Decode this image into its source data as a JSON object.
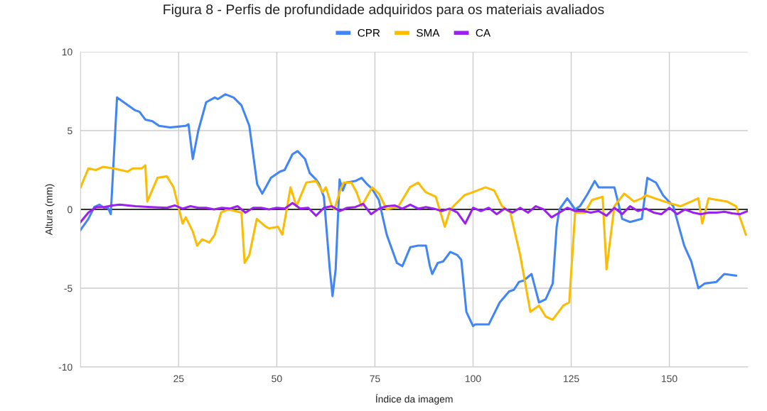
{
  "chart_data": {
    "type": "line",
    "title": "Figura 8 - Perfis de profundidade adquiridos para os materiais avaliados",
    "xlabel": "Índice da imagem",
    "ylabel": "Altura (mm)",
    "xlim": [
      0,
      170
    ],
    "xticks": [
      25,
      50,
      75,
      100,
      125,
      150
    ],
    "ylim": [
      -10,
      10
    ],
    "yticks": [
      -10,
      -5,
      0,
      5,
      10
    ],
    "grid": true,
    "legend": "top",
    "marker": "none",
    "line_style": "solid",
    "ref_lines": [
      {
        "axis": "y",
        "value": 0,
        "color": "#333333"
      }
    ],
    "series": [
      {
        "name": "CPR",
        "color": "#4285f4",
        "x": [
          0,
          2,
          3.5,
          4.8,
          6,
          7,
          7.7,
          9.3,
          11,
          13.8,
          15,
          16.5,
          18.3,
          20,
          22.8,
          26.8,
          27.5,
          28.6,
          30,
          32,
          34.2,
          35,
          36.9,
          39,
          41,
          43,
          45,
          46.3,
          48.5,
          50.8,
          52,
          54,
          55.3,
          57.2,
          58.4,
          60,
          60.8,
          62,
          63.5,
          64.2,
          65,
          66,
          66.8,
          67.6,
          70,
          71.6,
          73,
          74.3,
          76,
          78,
          80.6,
          82,
          84,
          86,
          88,
          89,
          89.6,
          91,
          92.4,
          94.2,
          96,
          97,
          98.3,
          100,
          100.5,
          104,
          106.8,
          109.2,
          110.4,
          111.7,
          113,
          114.9,
          116.8,
          118.5,
          120.3,
          121.3,
          122,
          124,
          126,
          127.2,
          129,
          131,
          132,
          136,
          138,
          140,
          143,
          144.4,
          146.6,
          148.4,
          151,
          153.8,
          155.6,
          157.4,
          159,
          162,
          164,
          167
        ],
        "values": [
          -1.3,
          -0.6,
          0.15,
          0.3,
          0.1,
          0.1,
          -0.3,
          7.1,
          6.8,
          6.3,
          6.2,
          5.7,
          5.6,
          5.3,
          5.2,
          5.3,
          5.4,
          3.2,
          5.0,
          6.8,
          7.1,
          7.0,
          7.3,
          7.1,
          6.6,
          5.3,
          1.6,
          1.0,
          2.0,
          2.4,
          2.5,
          3.5,
          3.7,
          3.2,
          2.3,
          1.9,
          1.6,
          0.8,
          -3.8,
          -5.5,
          -3.8,
          1.9,
          1.2,
          1.7,
          1.8,
          2.0,
          1.6,
          1.3,
          0.6,
          -1.6,
          -3.4,
          -3.6,
          -2.4,
          -2.3,
          -2.3,
          -3.6,
          -4.1,
          -3.4,
          -3.3,
          -2.7,
          -2.9,
          -3.2,
          -6.5,
          -7.4,
          -7.3,
          -7.3,
          -5.9,
          -5.2,
          -5.1,
          -4.6,
          -4.5,
          -4.1,
          -5.9,
          -5.7,
          -4.7,
          -1.1,
          0,
          0.7,
          0,
          0.2,
          0.9,
          1.8,
          1.4,
          1.4,
          -0.6,
          -0.8,
          -0.6,
          2.0,
          1.7,
          0.9,
          0.2,
          -2.3,
          -3.3,
          -5.0,
          -4.7,
          -4.6,
          -4.1,
          -4.2
        ]
      },
      {
        "name": "SMA",
        "color": "#fbbc04",
        "x": [
          0,
          2,
          3.9,
          5.7,
          8.4,
          12,
          13.3,
          15.6,
          16.5,
          17,
          17.7,
          19.6,
          22,
          23.7,
          26,
          26.8,
          28.6,
          29.7,
          31,
          32.8,
          34.2,
          35.8,
          37.6,
          41,
          41.8,
          43,
          44.9,
          47.2,
          48,
          50.3,
          51.4,
          53.5,
          55,
          57.5,
          60,
          61.7,
          62.5,
          64,
          64.7,
          66,
          67,
          69,
          70.3,
          71.6,
          74.3,
          76,
          78,
          81,
          83.9,
          86,
          87.9,
          90.5,
          92.8,
          94.2,
          97.8,
          100,
          103.2,
          105.4,
          107.4,
          109.5,
          112,
          114.6,
          116.8,
          118.5,
          120.3,
          123,
          124.5,
          126,
          128.5,
          130.3,
          133,
          134,
          136,
          138.5,
          141,
          143,
          144,
          147.5,
          150,
          152.8,
          155.6,
          157.4,
          158.4,
          160,
          162.3,
          164.7,
          167,
          169.5
        ],
        "values": [
          1.4,
          2.6,
          2.5,
          2.7,
          2.6,
          2.4,
          2.6,
          2.6,
          2.8,
          0.5,
          0.9,
          2.0,
          2.1,
          1.4,
          -0.9,
          -0.5,
          -1.4,
          -2.3,
          -1.9,
          -2.1,
          -1.6,
          -0.2,
          0,
          -0.2,
          -3.4,
          -2.9,
          -0.6,
          -1.1,
          -1.2,
          -1.1,
          -1.6,
          1.4,
          0.2,
          1.7,
          1.8,
          1.1,
          1.4,
          0.2,
          0,
          1.1,
          1.7,
          1.7,
          1.1,
          0.2,
          1.4,
          1.0,
          0,
          0.2,
          1.4,
          1.7,
          1.1,
          0.8,
          -1.1,
          0,
          0.9,
          1.1,
          1.4,
          1.2,
          0.2,
          -0.2,
          -2.9,
          -6.5,
          -6.1,
          -6.8,
          -7.0,
          -6.1,
          -5.9,
          -0.2,
          -0.2,
          0.6,
          0.8,
          -3.8,
          0.2,
          1.0,
          0.5,
          0.7,
          0.9,
          0.6,
          0.4,
          0.2,
          0.5,
          0.7,
          -0.9,
          0.7,
          0.6,
          0.5,
          0.2,
          -1.6
        ]
      },
      {
        "name": "CA",
        "color": "#9b20f0",
        "x": [
          0,
          2,
          4,
          6,
          8,
          10,
          14,
          18,
          22,
          24,
          26,
          28,
          30,
          32,
          34,
          36,
          38,
          40,
          42,
          44,
          46,
          48,
          50,
          52,
          54,
          56,
          58,
          60,
          62,
          64,
          66,
          68,
          70,
          72,
          74,
          76,
          78,
          80,
          82,
          84,
          86,
          88,
          90,
          92,
          94,
          96,
          98,
          100,
          102,
          104,
          106,
          108,
          110,
          112,
          114,
          116,
          118,
          120,
          122,
          124,
          126,
          128,
          130,
          132,
          134,
          136,
          138,
          140,
          142,
          144,
          146,
          148,
          150,
          152,
          154,
          156,
          158,
          160,
          162,
          164,
          166,
          168,
          170
        ],
        "values": [
          -0.8,
          -0.2,
          0.15,
          0.15,
          0.25,
          0.3,
          0.2,
          0.15,
          0.1,
          0.25,
          0.05,
          0.2,
          0.1,
          0.1,
          0,
          0.1,
          0.05,
          0.2,
          -0.2,
          0.1,
          0.1,
          0,
          0.1,
          0.05,
          0.4,
          0.05,
          0.1,
          -0.4,
          0.1,
          0.2,
          -0.1,
          0.1,
          0.15,
          0.35,
          -0.3,
          0.05,
          0.2,
          0.25,
          0.05,
          0.3,
          0.05,
          0.15,
          0.05,
          -0.1,
          0.05,
          -0.2,
          -0.9,
          0.1,
          -0.1,
          0.1,
          -0.3,
          0.05,
          -0.2,
          0.1,
          -0.2,
          0.2,
          0,
          -0.5,
          -0.2,
          0.1,
          -0.1,
          -0.1,
          -0.2,
          -0.1,
          -0.4,
          0.1,
          -0.3,
          0.2,
          -0.1,
          0.05,
          -0.2,
          -0.3,
          0.1,
          -0.3,
          0,
          -0.2,
          -0.3,
          -0.2,
          -0.2,
          -0.15,
          -0.25,
          -0.3,
          -0.1
        ]
      }
    ]
  }
}
